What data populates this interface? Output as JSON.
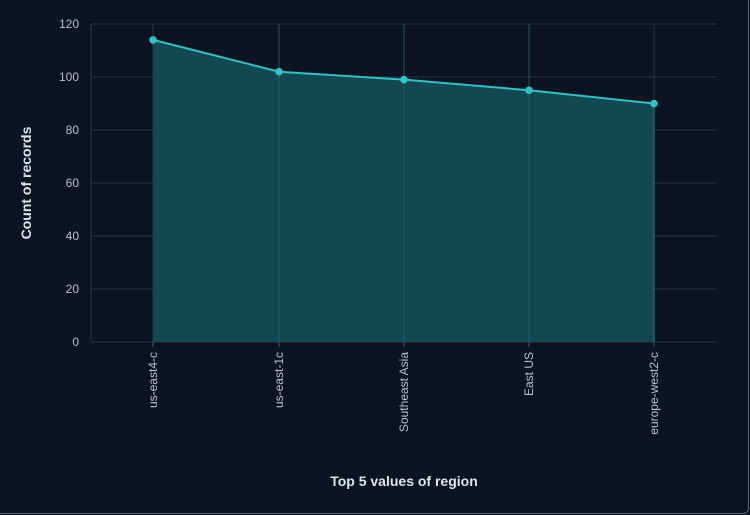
{
  "chart_data": {
    "type": "area",
    "categories": [
      "us-east4-c",
      "us-east-1c",
      "Southeast Asia",
      "East US",
      "europe-west2-c"
    ],
    "values": [
      114,
      102,
      99,
      95,
      90
    ],
    "xlabel": "Top 5 values of region",
    "ylabel": "Count of records",
    "ylim": [
      0,
      120
    ],
    "yticks": [
      0,
      20,
      40,
      60,
      80,
      100,
      120
    ],
    "grid": true,
    "colors": {
      "line": "#2ec4c4",
      "fill": "#124b55",
      "grid": "#2a3446",
      "background": "#0c1424"
    }
  }
}
